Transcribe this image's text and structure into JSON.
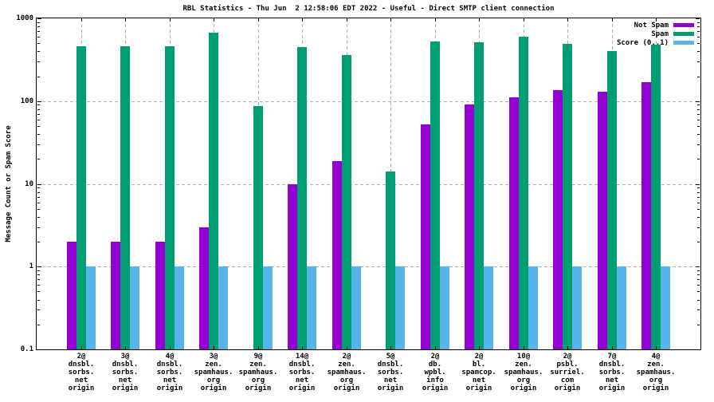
{
  "chart_data": {
    "type": "bar",
    "title": "RBL Statistics - Thu Jun  2 12:58:06 EDT 2022 - Useful - Direct SMTP client connection",
    "ylabel": "Message Count or Spam Score",
    "yscale": "log",
    "ylim": [
      0.1,
      1000
    ],
    "yticks": [
      0.1,
      1,
      10,
      100,
      1000
    ],
    "grid": true,
    "legend_position": "top-right-inside",
    "categories": [
      [
        "2@",
        "dnsbl.",
        "sorbs.",
        "net",
        "origin"
      ],
      [
        "3@",
        "dnsbl.",
        "sorbs.",
        "net",
        "origin"
      ],
      [
        "4@",
        "dnsbl.",
        "sorbs.",
        "net",
        "origin"
      ],
      [
        "3@",
        "zen.",
        "spamhaus.",
        "org",
        "origin"
      ],
      [
        "9@",
        "zen.",
        "spamhaus.",
        "org",
        "origin"
      ],
      [
        "14@",
        "dnsbl.",
        "sorbs.",
        "net",
        "origin"
      ],
      [
        "2@",
        "zen.",
        "spamhaus.",
        "org",
        "origin"
      ],
      [
        "5@",
        "dnsbl.",
        "sorbs.",
        "net",
        "origin"
      ],
      [
        "2@",
        "db.",
        "wpbl.",
        "info",
        "origin"
      ],
      [
        "2@",
        "bl.",
        "spamcop.",
        "net",
        "origin"
      ],
      [
        "10@",
        "zen.",
        "spamhaus.",
        "org",
        "origin"
      ],
      [
        "2@",
        "psbl.",
        "surriel.",
        "com",
        "origin"
      ],
      [
        "7@",
        "dnsbl.",
        "sorbs.",
        "net",
        "origin"
      ],
      [
        "4@",
        "zen.",
        "spamhaus.",
        "org",
        "origin"
      ]
    ],
    "series": [
      {
        "name": "Not Spam",
        "color": "#9400d3",
        "values": [
          2,
          2,
          2,
          3,
          null,
          10,
          19,
          null,
          52,
          92,
          112,
          135,
          130,
          170
        ]
      },
      {
        "name": "Spam",
        "color": "#009e73",
        "values": [
          460,
          460,
          460,
          670,
          87,
          450,
          360,
          14,
          520,
          515,
          600,
          490,
          400,
          485
        ]
      },
      {
        "name": "Score (0..1)",
        "color": "#56b4e9",
        "values": [
          1,
          1,
          1,
          1,
          1,
          1,
          1,
          1,
          1,
          1,
          1,
          1,
          1,
          1
        ]
      }
    ]
  },
  "colors": {
    "background": "#ffffff",
    "axis": "#000000",
    "grid": "#b0b0b0",
    "text": "#000000"
  }
}
